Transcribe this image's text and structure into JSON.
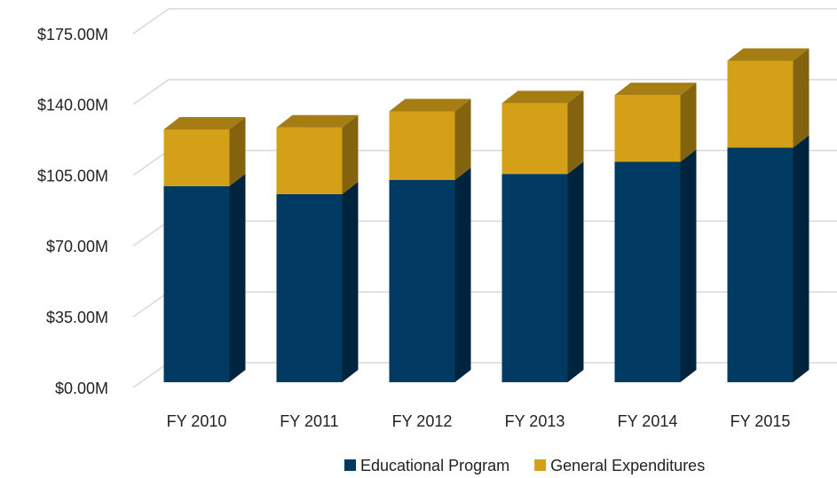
{
  "chart_data": {
    "type": "bar",
    "stacked": true,
    "categories": [
      "FY 2010",
      "FY 2011",
      "FY 2012",
      "FY 2013",
      "FY 2014",
      "FY 2015"
    ],
    "series": [
      {
        "name": "Educational Program",
        "color": "#003a63",
        "values": [
          97,
          93,
          100,
          103,
          109,
          116
        ]
      },
      {
        "name": "General Expenditures",
        "color": "#d4a017",
        "values": [
          28,
          33,
          34,
          35,
          33,
          43
        ]
      }
    ],
    "ylim": [
      0,
      175
    ],
    "yticks": [
      {
        "value": 0,
        "label": "$0.00M"
      },
      {
        "value": 35,
        "label": "$35.00M"
      },
      {
        "value": 70,
        "label": "$70.00M"
      },
      {
        "value": 105,
        "label": "$105.00M"
      },
      {
        "value": 140,
        "label": "$140.00M"
      },
      {
        "value": 175,
        "label": "$175.00M"
      }
    ],
    "grid": true,
    "legend": "bottom"
  }
}
